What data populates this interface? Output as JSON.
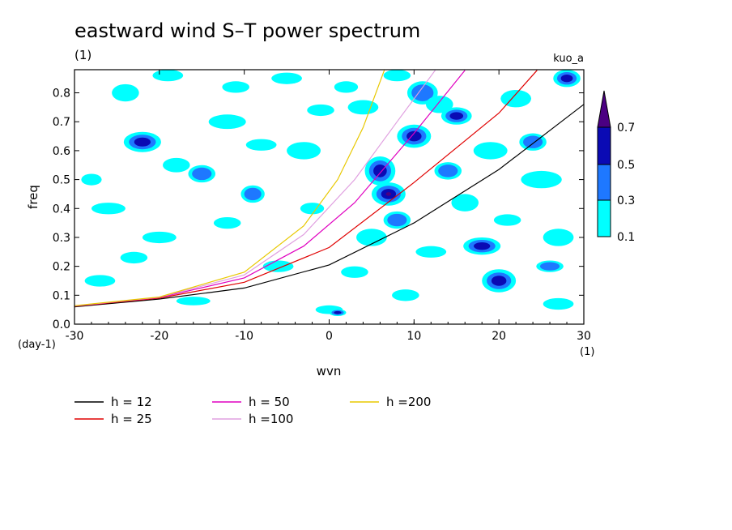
{
  "chart_data": {
    "type": "heatmap",
    "title": "eastward wind S–T power spectrum",
    "subtitle_left": "(1)",
    "subtitle_right": "kuo_a",
    "xlabel": "wvn",
    "ylabel": "freq",
    "x_unit": "(1)",
    "y_unit": "(day-1)",
    "xlim": [
      -30,
      30
    ],
    "ylim": [
      0,
      0.88
    ],
    "x_ticks": [
      -30,
      -20,
      -10,
      0,
      10,
      20,
      30
    ],
    "y_ticks": [
      0.0,
      0.1,
      0.2,
      0.3,
      0.4,
      0.5,
      0.6,
      0.7,
      0.8
    ],
    "y_tick_labels": [
      "0.0",
      "0.1",
      "0.2",
      "0.3",
      "0.4",
      "0.5",
      "0.6",
      "0.7",
      "0.8"
    ],
    "colorbar": {
      "levels": [
        "0.1",
        "0.3",
        "0.5",
        "0.7"
      ],
      "colors": [
        "#00ffff",
        "#1e78ff",
        "#0a0ab4",
        "#4b0082"
      ]
    },
    "series": [
      {
        "name": "h = 12",
        "color": "#000000",
        "points": [
          [
            -30,
            0.06
          ],
          [
            -20,
            0.087
          ],
          [
            -10,
            0.125
          ],
          [
            0,
            0.205
          ],
          [
            10,
            0.35
          ],
          [
            20,
            0.535
          ],
          [
            30,
            0.76
          ]
        ]
      },
      {
        "name": "h = 25",
        "color": "#e00000",
        "points": [
          [
            -30,
            0.062
          ],
          [
            -20,
            0.09
          ],
          [
            -10,
            0.145
          ],
          [
            0,
            0.265
          ],
          [
            10,
            0.49
          ],
          [
            20,
            0.73
          ],
          [
            24.5,
            0.878
          ]
        ]
      },
      {
        "name": "h = 50",
        "color": "#e000c0",
        "points": [
          [
            -30,
            0.063
          ],
          [
            -20,
            0.092
          ],
          [
            -10,
            0.16
          ],
          [
            -3,
            0.27
          ],
          [
            3,
            0.42
          ],
          [
            10,
            0.66
          ],
          [
            16,
            0.878
          ]
        ]
      },
      {
        "name": "h =100",
        "color": "#e0a0e0",
        "points": [
          [
            -30,
            0.063
          ],
          [
            -20,
            0.093
          ],
          [
            -10,
            0.17
          ],
          [
            -3,
            0.31
          ],
          [
            3,
            0.5
          ],
          [
            8,
            0.7
          ],
          [
            12.5,
            0.878
          ]
        ]
      },
      {
        "name": "h =200",
        "color": "#e8c800",
        "points": [
          [
            -30,
            0.064
          ],
          [
            -20,
            0.094
          ],
          [
            -10,
            0.18
          ],
          [
            -3,
            0.34
          ],
          [
            1,
            0.5
          ],
          [
            4,
            0.68
          ],
          [
            6.5,
            0.878
          ]
        ]
      }
    ],
    "legend_placement": "bottom-left",
    "blobs": [
      [
        -28,
        0.5,
        1.2,
        0.02,
        0
      ],
      [
        -24,
        0.8,
        1.6,
        0.03,
        0
      ],
      [
        -22,
        0.63,
        2.2,
        0.035,
        2
      ],
      [
        -26,
        0.4,
        2.0,
        0.02,
        0
      ],
      [
        -18,
        0.55,
        1.6,
        0.025,
        0
      ],
      [
        -15,
        0.52,
        1.6,
        0.03,
        1
      ],
      [
        -12,
        0.7,
        2.2,
        0.025,
        0
      ],
      [
        -9,
        0.45,
        1.4,
        0.03,
        1
      ],
      [
        -5,
        0.85,
        1.8,
        0.02,
        0
      ],
      [
        -3,
        0.6,
        2.0,
        0.03,
        0
      ],
      [
        -1,
        0.74,
        1.6,
        0.02,
        0
      ],
      [
        2,
        0.82,
        1.4,
        0.02,
        0
      ],
      [
        5,
        0.3,
        1.8,
        0.03,
        0
      ],
      [
        6,
        0.53,
        1.8,
        0.05,
        2
      ],
      [
        7,
        0.45,
        2.0,
        0.04,
        3
      ],
      [
        8,
        0.36,
        1.6,
        0.03,
        1
      ],
      [
        10,
        0.65,
        2.0,
        0.04,
        2
      ],
      [
        11,
        0.8,
        1.8,
        0.04,
        1
      ],
      [
        13,
        0.76,
        1.6,
        0.03,
        0
      ],
      [
        15,
        0.72,
        1.8,
        0.03,
        2
      ],
      [
        18,
        0.27,
        2.2,
        0.03,
        2
      ],
      [
        20,
        0.15,
        2.0,
        0.04,
        2
      ],
      [
        22,
        0.78,
        1.8,
        0.03,
        0
      ],
      [
        25,
        0.5,
        2.4,
        0.03,
        0
      ],
      [
        27,
        0.3,
        1.8,
        0.03,
        0
      ],
      [
        28,
        0.85,
        1.6,
        0.03,
        2
      ],
      [
        -20,
        0.3,
        2.0,
        0.02,
        0
      ],
      [
        -12,
        0.35,
        1.6,
        0.02,
        0
      ],
      [
        -6,
        0.2,
        1.8,
        0.02,
        0
      ],
      [
        0,
        0.05,
        1.6,
        0.015,
        0
      ],
      [
        1,
        0.04,
        1.0,
        0.012,
        2
      ],
      [
        3,
        0.18,
        1.6,
        0.02,
        0
      ],
      [
        -27,
        0.15,
        1.8,
        0.02,
        0
      ],
      [
        -16,
        0.08,
        2.0,
        0.015,
        0
      ],
      [
        16,
        0.42,
        1.6,
        0.03,
        0
      ],
      [
        12,
        0.25,
        1.8,
        0.02,
        0
      ],
      [
        24,
        0.63,
        1.6,
        0.03,
        1
      ],
      [
        -8,
        0.62,
        1.8,
        0.02,
        0
      ],
      [
        9,
        0.1,
        1.6,
        0.02,
        0
      ],
      [
        27,
        0.07,
        1.8,
        0.02,
        0
      ],
      [
        -23,
        0.23,
        1.6,
        0.02,
        0
      ],
      [
        14,
        0.53,
        1.6,
        0.03,
        1
      ],
      [
        19,
        0.6,
        2.0,
        0.03,
        0
      ],
      [
        -2,
        0.4,
        1.4,
        0.02,
        0
      ],
      [
        4,
        0.75,
        1.8,
        0.025,
        0
      ],
      [
        -19,
        0.86,
        1.8,
        0.02,
        0
      ],
      [
        21,
        0.36,
        1.6,
        0.02,
        0
      ],
      [
        -11,
        0.82,
        1.6,
        0.02,
        0
      ],
      [
        8,
        0.86,
        1.6,
        0.02,
        0
      ],
      [
        26,
        0.2,
        1.6,
        0.02,
        1
      ]
    ]
  }
}
